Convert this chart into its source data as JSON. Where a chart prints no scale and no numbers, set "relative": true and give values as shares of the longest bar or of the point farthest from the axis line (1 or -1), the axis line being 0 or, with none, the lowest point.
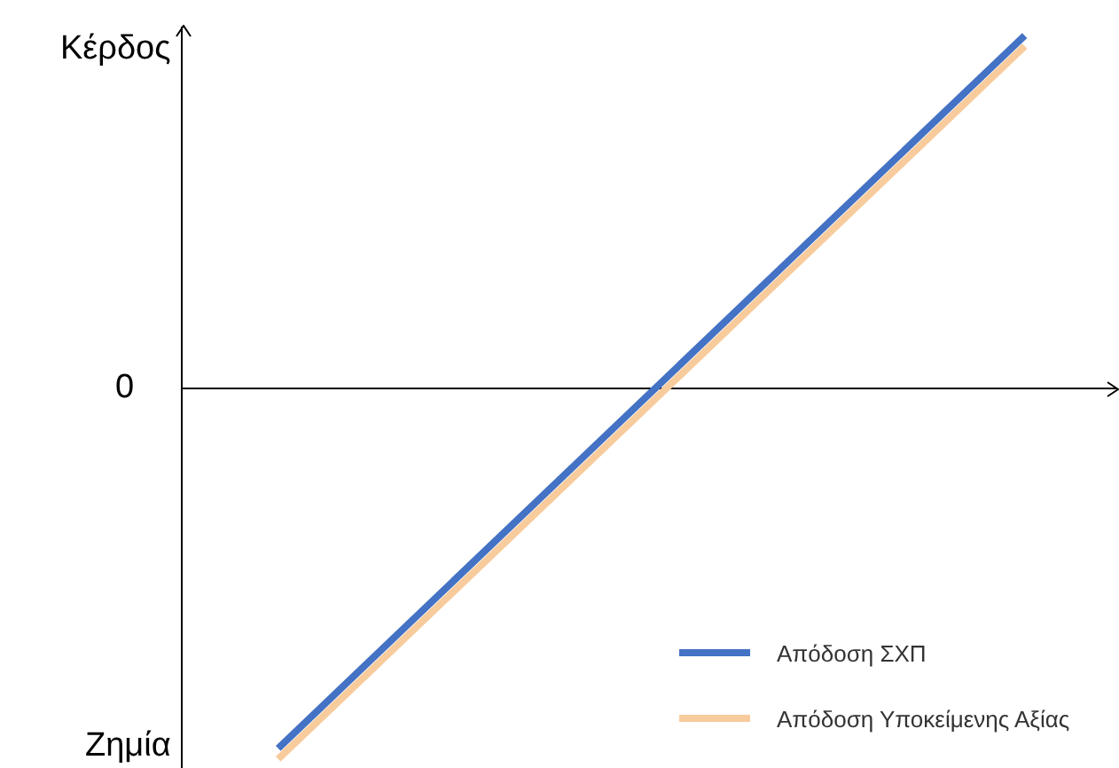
{
  "chart_data": {
    "type": "line",
    "relative": true,
    "categories": [
      null,
      null
    ],
    "series": [
      {
        "name": "Απόδοση ΣΧΠ",
        "color": "#4472c4",
        "values": [
          -0.971,
          0.952
        ]
      },
      {
        "name": "Απόδοση Υποκείμενης Αξίας",
        "color": "#f8cb9c",
        "values": [
          -1,
          0.923
        ]
      }
    ],
    "annotations": [
      "Κέρδος",
      "0",
      "Ζημία"
    ],
    "legend": "bottom right",
    "grid": false,
    "marker": "none",
    "line_style": "solid"
  }
}
